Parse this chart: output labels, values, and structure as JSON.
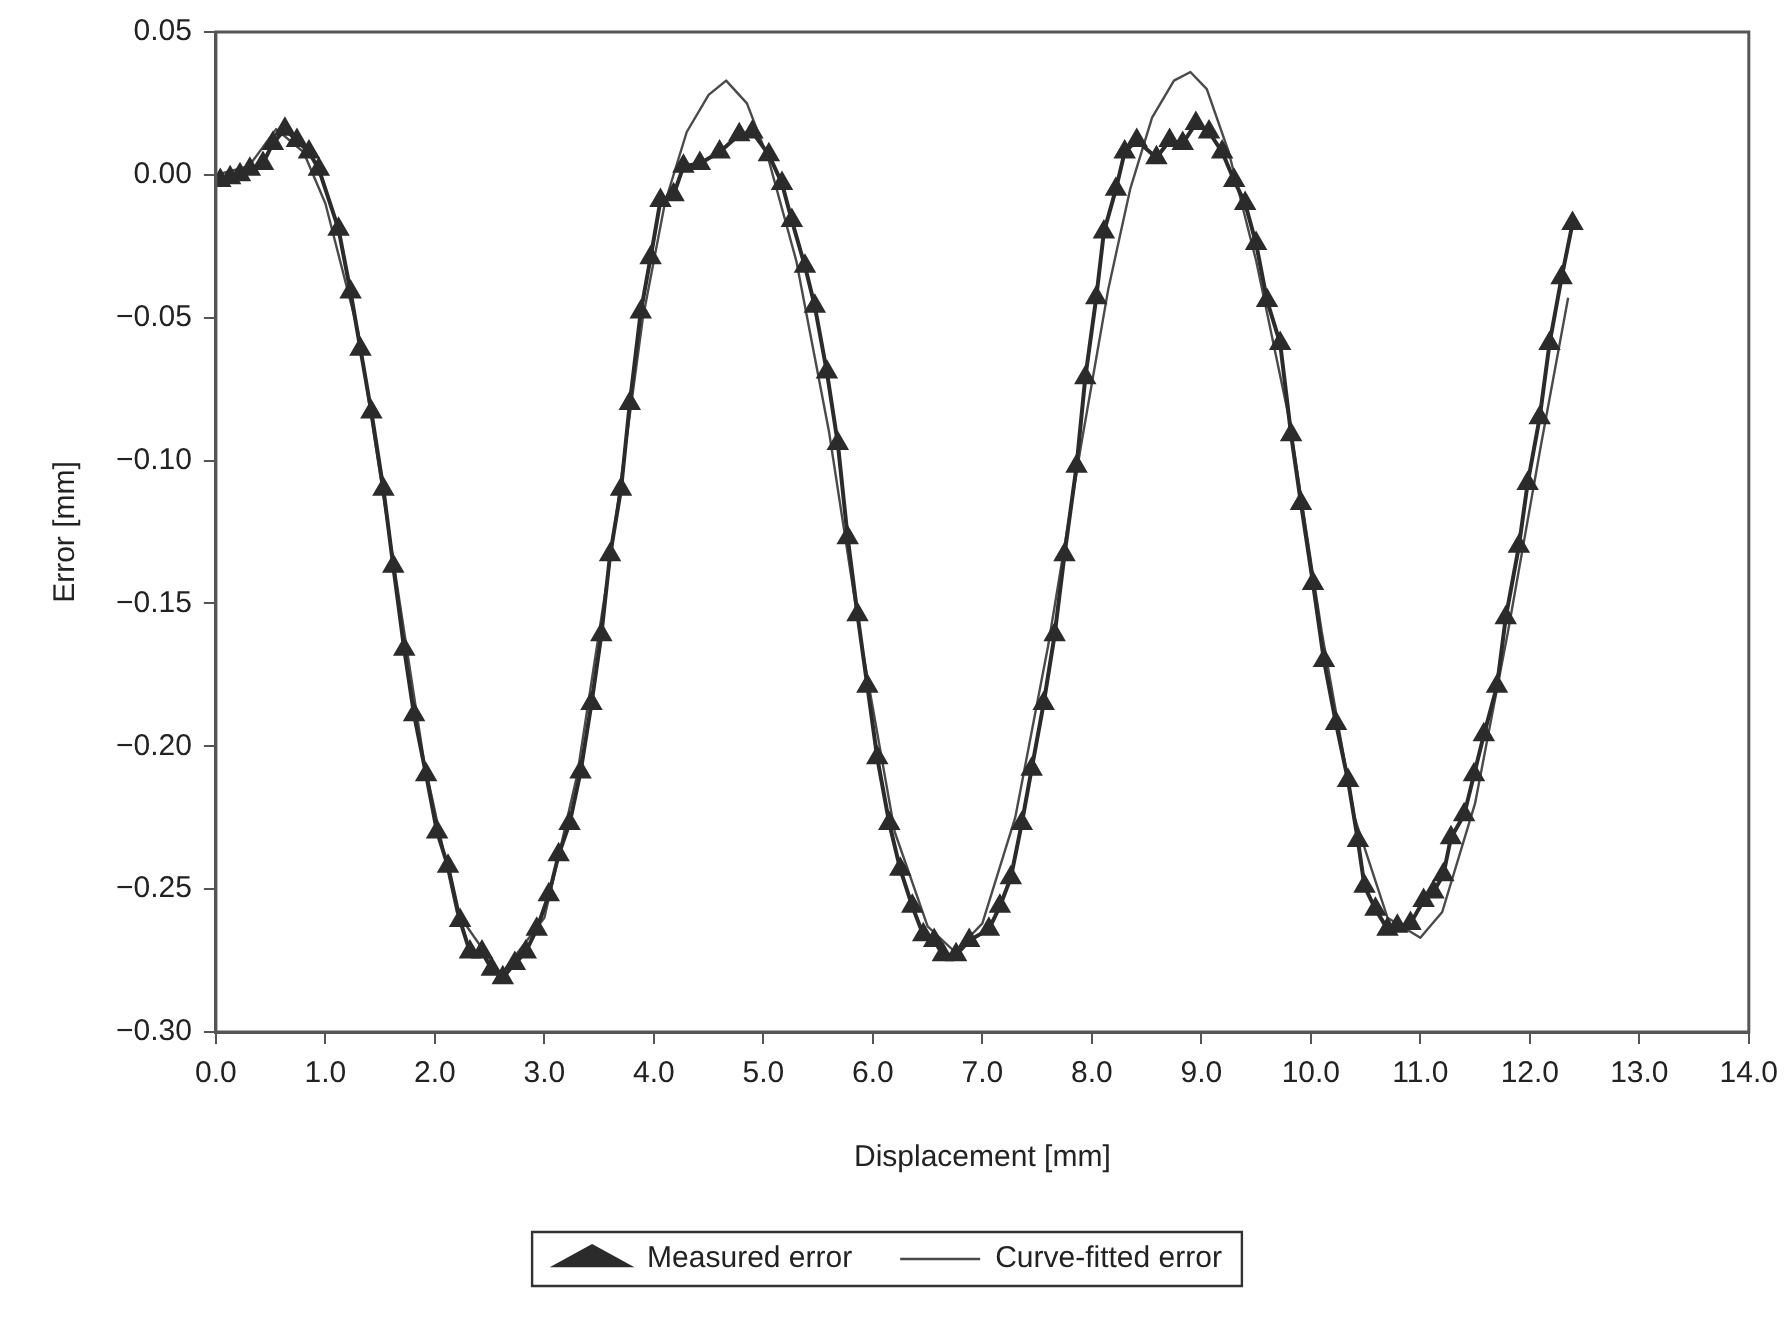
{
  "chart_data": {
    "type": "line",
    "xlabel": "Displacement [mm]",
    "ylabel": "Error [mm]",
    "xlim": [
      0,
      14
    ],
    "ylim": [
      -0.3,
      0.05
    ],
    "xticks": [
      {
        "value": 0,
        "label": "0.0"
      },
      {
        "value": 1,
        "label": "1.0"
      },
      {
        "value": 2,
        "label": "2.0"
      },
      {
        "value": 3,
        "label": "3.0"
      },
      {
        "value": 4,
        "label": "4.0"
      },
      {
        "value": 5,
        "label": "5.0"
      },
      {
        "value": 6,
        "label": "6.0"
      },
      {
        "value": 7,
        "label": "7.0"
      },
      {
        "value": 8,
        "label": "8.0"
      },
      {
        "value": 9,
        "label": "9.0"
      },
      {
        "value": 10,
        "label": "10.0"
      },
      {
        "value": 11,
        "label": "11.0"
      },
      {
        "value": 12,
        "label": "12.0"
      },
      {
        "value": 13,
        "label": "13.0"
      },
      {
        "value": 14,
        "label": "14.0"
      }
    ],
    "yticks": [
      {
        "value": -0.3,
        "label": "−0.30"
      },
      {
        "value": -0.25,
        "label": "−0.25"
      },
      {
        "value": -0.2,
        "label": "−0.20"
      },
      {
        "value": -0.15,
        "label": "−0.15"
      },
      {
        "value": -0.1,
        "label": "−0.10"
      },
      {
        "value": -0.05,
        "label": "−0.05"
      },
      {
        "value": 0,
        "label": "0.00"
      },
      {
        "value": 0.05,
        "label": "0.05"
      }
    ],
    "legend": "bottom",
    "series": [
      {
        "name": "Measured error",
        "color": "#2b2b2b",
        "marker": "triangle",
        "line_style": "solid",
        "x": [
          0.04,
          0.13,
          0.22,
          0.31,
          0.43,
          0.52,
          0.63,
          0.74,
          0.85,
          0.94,
          1.12,
          1.23,
          1.32,
          1.42,
          1.53,
          1.62,
          1.72,
          1.81,
          1.92,
          2.02,
          2.12,
          2.23,
          2.32,
          2.43,
          2.52,
          2.62,
          2.73,
          2.83,
          2.93,
          3.04,
          3.13,
          3.23,
          3.33,
          3.43,
          3.52,
          3.6,
          3.7,
          3.78,
          3.88,
          3.97,
          4.06,
          4.18,
          4.27,
          4.42,
          4.6,
          4.78,
          4.9,
          5.05,
          5.17,
          5.26,
          5.38,
          5.47,
          5.58,
          5.68,
          5.77,
          5.86,
          5.95,
          6.04,
          6.15,
          6.25,
          6.36,
          6.46,
          6.56,
          6.64,
          6.76,
          6.88,
          7.06,
          7.16,
          7.26,
          7.36,
          7.45,
          7.56,
          7.66,
          7.75,
          7.86,
          7.94,
          8.04,
          8.11,
          8.22,
          8.3,
          8.41,
          8.59,
          8.71,
          8.83,
          8.95,
          9.07,
          9.19,
          9.3,
          9.4,
          9.5,
          9.6,
          9.72,
          9.82,
          9.91,
          10.02,
          10.12,
          10.23,
          10.34,
          10.43,
          10.49,
          10.59,
          10.7,
          10.79,
          10.91,
          11.03,
          11.12,
          11.21,
          11.28,
          11.4,
          11.49,
          11.58,
          11.7,
          11.78,
          11.9,
          11.98,
          12.09,
          12.18,
          12.29,
          12.39
        ],
        "values": [
          -0.002,
          -0.001,
          0.0,
          0.002,
          0.004,
          0.011,
          0.016,
          0.012,
          0.008,
          0.002,
          -0.019,
          -0.041,
          -0.061,
          -0.083,
          -0.11,
          -0.137,
          -0.166,
          -0.189,
          -0.21,
          -0.23,
          -0.242,
          -0.261,
          -0.272,
          -0.272,
          -0.278,
          -0.281,
          -0.276,
          -0.272,
          -0.264,
          -0.252,
          -0.238,
          -0.227,
          -0.209,
          -0.185,
          -0.161,
          -0.133,
          -0.11,
          -0.08,
          -0.048,
          -0.029,
          -0.009,
          -0.007,
          0.003,
          0.004,
          0.008,
          0.014,
          0.015,
          0.007,
          -0.003,
          -0.016,
          -0.032,
          -0.046,
          -0.069,
          -0.094,
          -0.127,
          -0.154,
          -0.179,
          -0.204,
          -0.227,
          -0.243,
          -0.256,
          -0.266,
          -0.268,
          -0.273,
          -0.273,
          -0.268,
          -0.264,
          -0.256,
          -0.246,
          -0.227,
          -0.208,
          -0.185,
          -0.161,
          -0.133,
          -0.102,
          -0.071,
          -0.043,
          -0.02,
          -0.005,
          0.008,
          0.012,
          0.006,
          0.012,
          0.011,
          0.018,
          0.015,
          0.008,
          -0.002,
          -0.01,
          -0.024,
          -0.044,
          -0.059,
          -0.091,
          -0.115,
          -0.143,
          -0.17,
          -0.192,
          -0.212,
          -0.233,
          -0.249,
          -0.257,
          -0.264,
          -0.263,
          -0.262,
          -0.254,
          -0.251,
          -0.245,
          -0.232,
          -0.224,
          -0.21,
          -0.196,
          -0.179,
          -0.155,
          -0.13,
          -0.108,
          -0.085,
          -0.059,
          -0.036,
          -0.017
        ]
      },
      {
        "name": "Curve-fitted error",
        "color": "#4a4a4a",
        "marker": "none",
        "line_style": "solid",
        "x": [
          0,
          0.3,
          0.55,
          0.8,
          1.0,
          1.3,
          1.6,
          1.9,
          2.2,
          2.6,
          3.0,
          3.3,
          3.6,
          3.9,
          4.1,
          4.3,
          4.5,
          4.66,
          4.85,
          5.05,
          5.3,
          5.6,
          5.9,
          6.2,
          6.5,
          6.75,
          7.0,
          7.3,
          7.6,
          7.9,
          8.15,
          8.35,
          8.55,
          8.75,
          8.9,
          9.05,
          9.25,
          9.5,
          9.8,
          10.1,
          10.4,
          10.7,
          11.0,
          11.2,
          11.5,
          11.8,
          12.1,
          12.35
        ],
        "values": [
          0.0,
          0.003,
          0.016,
          0.008,
          -0.01,
          -0.055,
          -0.13,
          -0.205,
          -0.258,
          -0.28,
          -0.26,
          -0.21,
          -0.135,
          -0.05,
          -0.01,
          0.015,
          0.028,
          0.033,
          0.025,
          0.005,
          -0.03,
          -0.09,
          -0.165,
          -0.23,
          -0.263,
          -0.272,
          -0.262,
          -0.225,
          -0.165,
          -0.095,
          -0.04,
          -0.005,
          0.02,
          0.033,
          0.036,
          0.03,
          0.008,
          -0.03,
          -0.085,
          -0.16,
          -0.225,
          -0.26,
          -0.267,
          -0.258,
          -0.22,
          -0.16,
          -0.095,
          -0.043
        ]
      }
    ]
  }
}
